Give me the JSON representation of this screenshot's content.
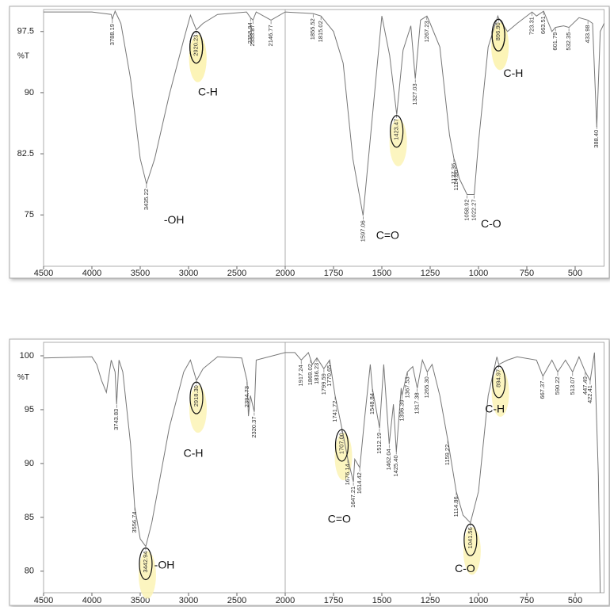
{
  "chart_data": [
    {
      "type": "line",
      "ylabel": "%T",
      "color": "#777777",
      "xlim": [
        4500,
        350
      ],
      "ylim": [
        68.7,
        100.2
      ],
      "x_break": 2000,
      "xticks": [
        4500,
        4000,
        3500,
        3000,
        2500,
        2000,
        1750,
        1500,
        1250,
        1000,
        750,
        500
      ],
      "yticks": [
        {
          "value": 75,
          "label": "75"
        },
        {
          "value": 82.5,
          "label": "82.5"
        },
        {
          "value": 90,
          "label": "90"
        },
        {
          "value": 97.5,
          "label": "97.5"
        }
      ],
      "x": [
        4500,
        4000,
        3800,
        3789,
        3760,
        3700,
        3600,
        3500,
        3435,
        3350,
        3200,
        3050,
        2980,
        2920,
        2850,
        2700,
        2400,
        2359,
        2334,
        2300,
        2147,
        2000,
        1856,
        1815,
        1750,
        1700,
        1650,
        1597,
        1550,
        1500,
        1460,
        1423,
        1390,
        1350,
        1327,
        1300,
        1267,
        1250,
        1200,
        1150,
        1127,
        1115,
        1100,
        1059,
        1022,
        1000,
        950,
        900,
        897,
        850,
        800,
        723,
        700,
        663,
        620,
        602,
        560,
        532,
        480,
        434,
        410,
        388,
        370,
        350
      ],
      "values": [
        99.9,
        99.9,
        99.6,
        99.0,
        100,
        98.5,
        91.7,
        81.9,
        78.8,
        81.9,
        89.7,
        96.5,
        99.5,
        97.7,
        98.5,
        99.6,
        99.9,
        99.2,
        98.9,
        99.9,
        98.9,
        99.9,
        99.7,
        99.4,
        97.5,
        93.6,
        81.9,
        74.9,
        86.8,
        99.4,
        94.6,
        87.3,
        95.2,
        98.2,
        91.7,
        98.9,
        99.4,
        98.5,
        95.6,
        84.8,
        81.9,
        81.1,
        79.5,
        77.5,
        77.5,
        83.9,
        95.6,
        99.4,
        99.2,
        97.5,
        98.5,
        99.9,
        99.4,
        100,
        97.5,
        98,
        98.2,
        98,
        99.2,
        98.9,
        98.5,
        85.8,
        97.5,
        98.5
      ],
      "peaks": [
        3788.19,
        3435.22,
        2920.23,
        2358.94,
        2333.87,
        2146.77,
        1855.52,
        1815.02,
        1597.06,
        1423.47,
        1327.03,
        1267.23,
        1127.36,
        1114.86,
        1058.92,
        1022.27,
        896.9,
        723.31,
        663.51,
        601.79,
        532.35,
        433.98,
        388.4
      ],
      "peak_labels": [
        "3788.19",
        "3435.22",
        "2920.23",
        "2358.94",
        "2333.87",
        "2146.77",
        "1855.52",
        "1815.02",
        "1597.06",
        "1423.47",
        "1327.03",
        "1267.23",
        "1127.36",
        "1114.86",
        "1058.92",
        "1022.27",
        "896.90",
        "723.31",
        "663.51",
        "601.79",
        "532.35",
        "433.98",
        "388.40"
      ],
      "annotations": [
        {
          "text": "-OH",
          "x": 3150,
          "y": 74.3
        },
        {
          "text": "C-H",
          "x": 2800,
          "y": 90
        },
        {
          "text": "C=O",
          "x": 1470,
          "y": 72.4
        },
        {
          "text": "C-O",
          "x": 935,
          "y": 73.8
        },
        {
          "text": "C-H",
          "x": 820,
          "y": 92.3
        }
      ]
    },
    {
      "type": "line",
      "ylabel": "%T",
      "color": "#777777",
      "xlim": [
        4500,
        350
      ],
      "ylim": [
        78,
        101.25
      ],
      "x_break": 2000,
      "xticks": [
        4500,
        4000,
        3500,
        3000,
        2500,
        2000,
        1750,
        1500,
        1250,
        1000,
        750,
        500
      ],
      "yticks": [
        80,
        85,
        90,
        95,
        100
      ],
      "x": [
        4500,
        4000,
        3950,
        3900,
        3850,
        3800,
        3760,
        3744,
        3720,
        3680,
        3600,
        3557,
        3500,
        3443,
        3380,
        3200,
        3050,
        2980,
        2918,
        2850,
        2700,
        2450,
        2395,
        2380,
        2360,
        2320,
        2300,
        2000,
        1950,
        1917,
        1880,
        1860,
        1836,
        1800,
        1770,
        1742,
        1707,
        1676,
        1647,
        1640,
        1614,
        1590,
        1560,
        1549,
        1512,
        1490,
        1462,
        1440,
        1425,
        1400,
        1396,
        1368,
        1340,
        1317,
        1290,
        1265,
        1240,
        1200,
        1159,
        1115,
        1080,
        1042,
        1000,
        950,
        905,
        895,
        850,
        800,
        700,
        667,
        620,
        590,
        550,
        513,
        480,
        447,
        422,
        400,
        380,
        370
      ],
      "values": [
        99.8,
        99.9,
        99.2,
        97.7,
        96.6,
        99.6,
        98.5,
        95.5,
        99.6,
        98.5,
        91.8,
        86,
        83,
        82.3,
        84.5,
        93.3,
        98.5,
        99.6,
        97.7,
        98.8,
        99.9,
        99.8,
        97.7,
        94.4,
        96.3,
        94.8,
        99.6,
        100.3,
        100.3,
        99.6,
        100.3,
        99.2,
        99.8,
        98.8,
        99.6,
        96.3,
        93.3,
        90.4,
        88.3,
        90.4,
        89.6,
        94.0,
        99.2,
        97.0,
        93.3,
        99.2,
        91.8,
        95.5,
        91.1,
        97,
        96.3,
        98.5,
        99,
        97,
        99.6,
        98.5,
        99.2,
        96.3,
        92.2,
        87.4,
        85.2,
        84.5,
        87.4,
        96.3,
        99.9,
        99.2,
        99.6,
        99.9,
        99.6,
        98.1,
        99.6,
        98.5,
        99.6,
        98.5,
        99.9,
        98.5,
        97.7,
        100.3,
        88.9,
        78
      ],
      "peaks": [
        3743.83,
        3556.74,
        3442.94,
        2918.3,
        2394.73,
        2320.37,
        1917.24,
        1869.02,
        1836.23,
        1799.59,
        1770.65,
        1741.72,
        1707,
        1676.14,
        1647.21,
        1614.42,
        1548.84,
        1512.19,
        1462.04,
        1425.4,
        1396.39,
        1367.53,
        1317.38,
        1265.3,
        1159.22,
        1114.86,
        1041.56,
        894.97,
        667.37,
        590.22,
        513.07,
        447.49,
        422.41
      ],
      "peak_labels": [
        "3743.83",
        "3556.74",
        "3442.94",
        "2918.30",
        "2394.73",
        "2320.37",
        "1917.24",
        "1869.02",
        "1836.23",
        "1799.59",
        "1770.65",
        "1741.72",
        "1707.00",
        "1676.14",
        "1647.21",
        "1614.42",
        "1548.84",
        "1512.19",
        "1462.04",
        "1425.40",
        "1396.39",
        "1367.53",
        "1317.38",
        "1265.30",
        "1159.22",
        "1114.86",
        "1041.56",
        "894.97",
        "667.37",
        "590.22",
        "513.07",
        "447.49",
        "422.41"
      ],
      "annotations": [
        {
          "text": "-OH",
          "x": 3250,
          "y": 80.5
        },
        {
          "text": "C-H",
          "x": 2950,
          "y": 90.9
        },
        {
          "text": "C=O",
          "x": 1720,
          "y": 84.8
        },
        {
          "text": "C-O",
          "x": 1070,
          "y": 80.2
        },
        {
          "text": "C-H",
          "x": 915,
          "y": 95
        }
      ]
    }
  ]
}
